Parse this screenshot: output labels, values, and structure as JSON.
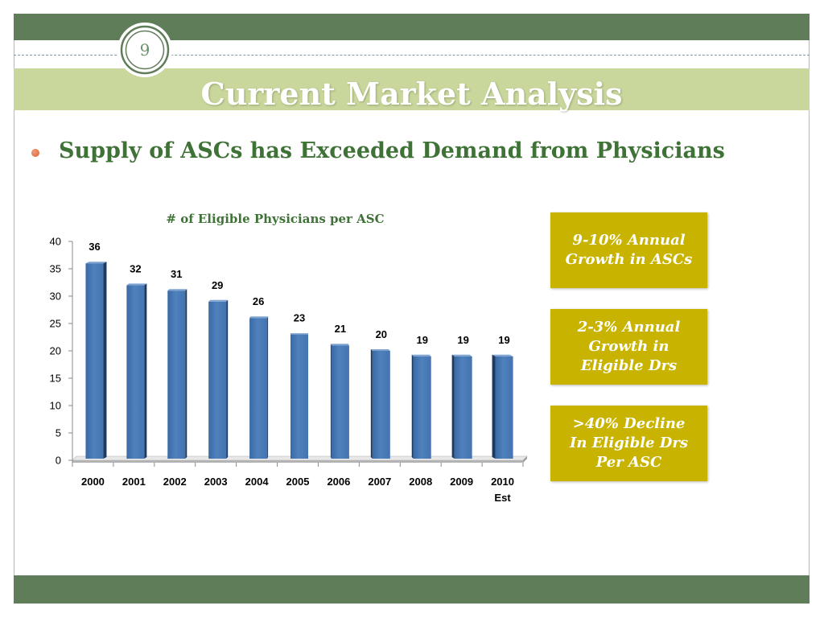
{
  "slide": {
    "page_number": "9",
    "title": "Current Market Analysis",
    "bullet": "Supply of ASCs has Exceeded Demand from Physicians",
    "callouts": [
      {
        "lines": [
          "9-10% Annual",
          "Growth in ASCs"
        ]
      },
      {
        "lines": [
          "2-3% Annual",
          "Growth in",
          "Eligible Drs"
        ]
      },
      {
        "lines": [
          ">40% Decline",
          "In Eligible Drs",
          "Per ASC"
        ]
      }
    ]
  },
  "colors": {
    "header_band": "#5f7d58",
    "title_band": "#c9d69c",
    "rule": "#7a9ba6",
    "accent_green": "#3f7236",
    "bullet": "#d9643d",
    "callout_fill": "#c8b400",
    "callout_text": "#ffffff",
    "bar": "#4f81bd",
    "bar_side": "#1f3a60"
  },
  "chart_data": {
    "type": "bar",
    "title": "# of Eligible Physicians per ASC",
    "xlabel": "",
    "ylabel": "",
    "categories": [
      "2000",
      "2001",
      "2002",
      "2003",
      "2004",
      "2005",
      "2006",
      "2007",
      "2008",
      "2009",
      "2010"
    ],
    "category_sublabels": [
      "",
      "",
      "",
      "",
      "",
      "",
      "",
      "",
      "",
      "",
      "Est"
    ],
    "values": [
      36,
      32,
      31,
      29,
      26,
      23,
      21,
      20,
      19,
      19,
      19
    ],
    "ylim": [
      0,
      40
    ],
    "y_ticks": [
      0,
      5,
      10,
      15,
      20,
      25,
      30,
      35,
      40
    ],
    "data_labels": true,
    "grid": false,
    "legend": "none",
    "bar_style": "3d"
  }
}
